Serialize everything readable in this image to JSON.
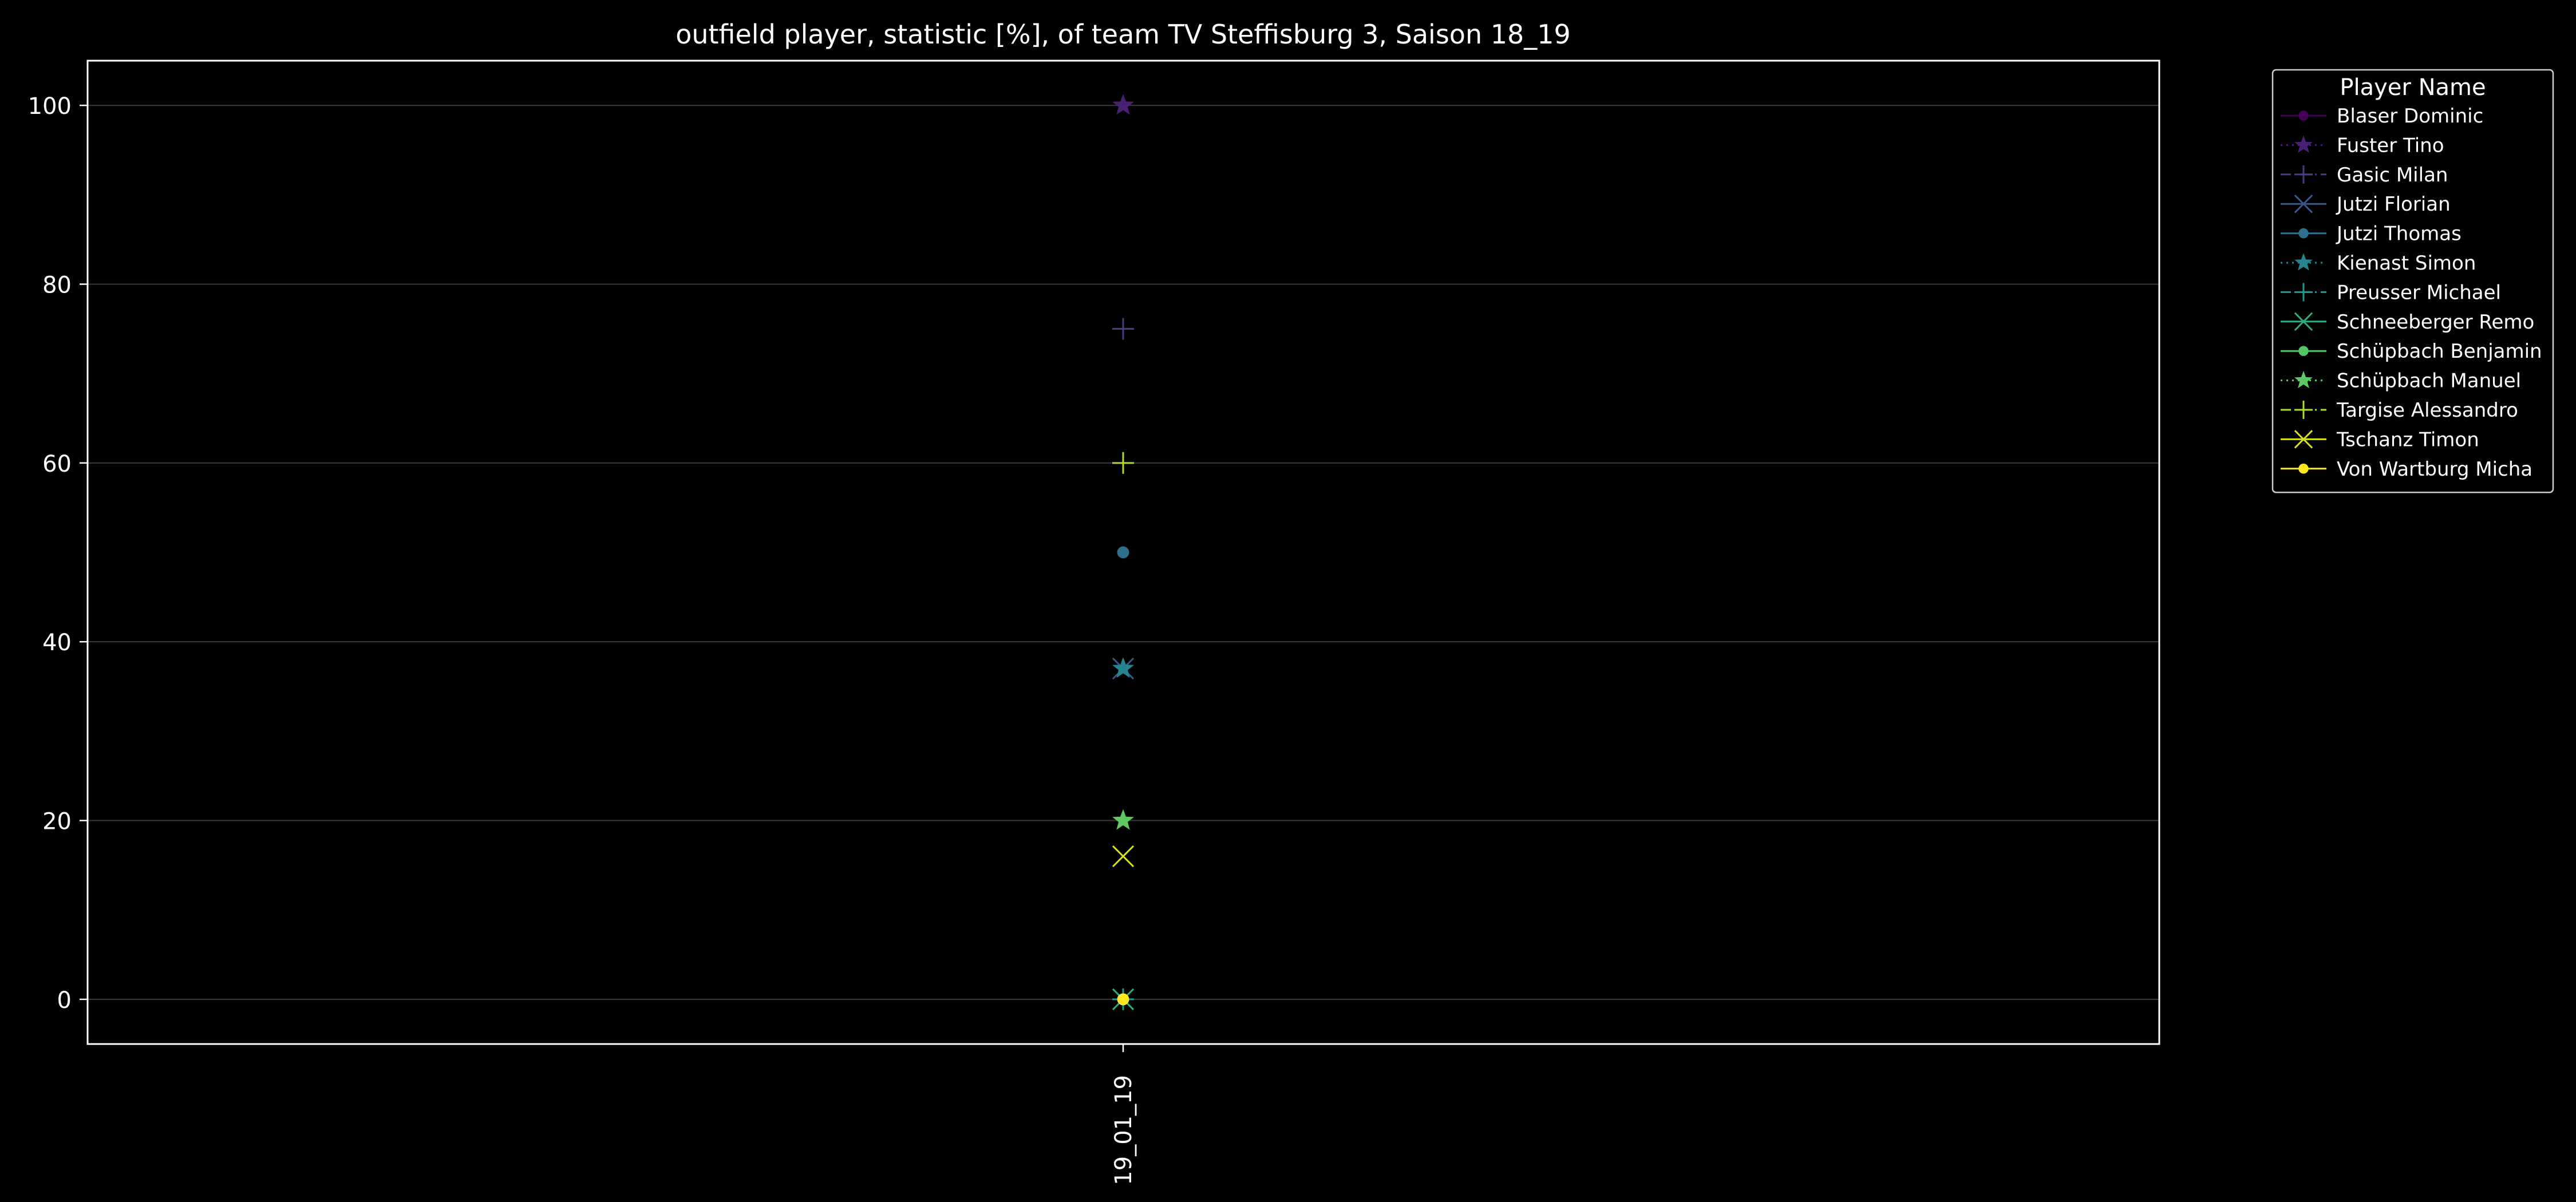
{
  "chart_data": {
    "type": "line",
    "title": "outfield player, statistic [%], of team TV Steffisburg 3, Saison 18_19",
    "xlabel": "",
    "ylabel": "",
    "categories": [
      "19_01_19"
    ],
    "ylim": [
      -5,
      105
    ],
    "yticks": [
      0,
      20,
      40,
      60,
      80,
      100
    ],
    "grid": "horizontal",
    "legend": {
      "title": "Player Name",
      "placement": "outside-top-right"
    },
    "series": [
      {
        "name": "Blaser Dominic",
        "values": [
          0
        ],
        "color": "#440154",
        "marker": "circle",
        "linestyle": "solid"
      },
      {
        "name": "Fuster Tino",
        "values": [
          100
        ],
        "color": "#482173",
        "marker": "star",
        "linestyle": "dotted"
      },
      {
        "name": "Gasic Milan",
        "values": [
          75
        ],
        "color": "#433e85",
        "marker": "plus",
        "linestyle": "dashdot"
      },
      {
        "name": "Jutzi Florian",
        "values": [
          37
        ],
        "color": "#38588c",
        "marker": "x",
        "linestyle": "solid"
      },
      {
        "name": "Jutzi Thomas",
        "values": [
          50
        ],
        "color": "#2d708e",
        "marker": "circle",
        "linestyle": "solid"
      },
      {
        "name": "Kienast Simon",
        "values": [
          37
        ],
        "color": "#25858e",
        "marker": "star",
        "linestyle": "dotted"
      },
      {
        "name": "Preusser Michael",
        "values": [
          0
        ],
        "color": "#1e9b8a",
        "marker": "plus",
        "linestyle": "dashdot"
      },
      {
        "name": "Schneeberger Remo",
        "values": [
          0
        ],
        "color": "#2ab07f",
        "marker": "x",
        "linestyle": "solid"
      },
      {
        "name": "Schüpbach Benjamin",
        "values": [
          0
        ],
        "color": "#52c569",
        "marker": "circle",
        "linestyle": "solid"
      },
      {
        "name": "Schüpbach Manuel",
        "values": [
          20
        ],
        "color": "#5ec962",
        "marker": "star",
        "linestyle": "dotted"
      },
      {
        "name": "Targise Alessandro",
        "values": [
          60
        ],
        "color": "#addc30",
        "marker": "plus",
        "linestyle": "dashdot"
      },
      {
        "name": "Tschanz Timon",
        "values": [
          16
        ],
        "color": "#d8e219",
        "marker": "x",
        "linestyle": "solid"
      },
      {
        "name": "Von Wartburg Micha",
        "values": [
          0
        ],
        "color": "#fde725",
        "marker": "circle",
        "linestyle": "solid"
      }
    ]
  }
}
